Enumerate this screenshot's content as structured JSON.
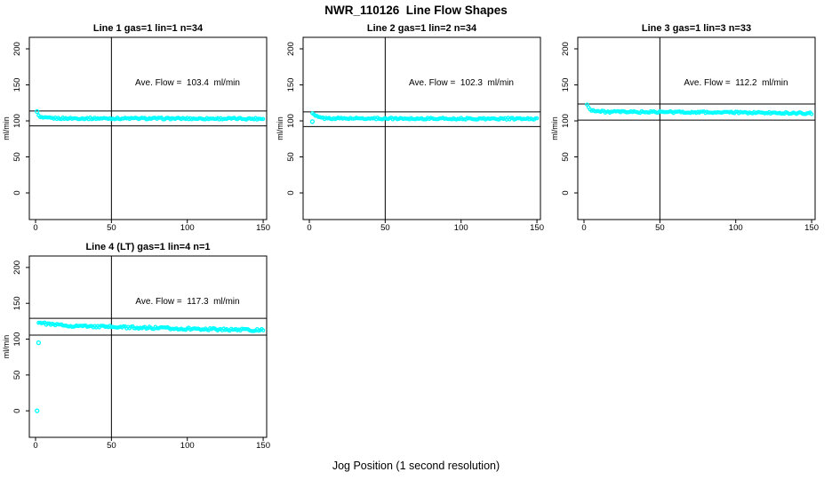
{
  "figure": {
    "title": "NWR_110126  Line Flow Shapes",
    "xlabel": "Jog Position (1 second resolution)",
    "background_color": "#FFFFFF",
    "axis_color": "#000000",
    "marker_color": "#00FFFF"
  },
  "chart_data": [
    {
      "type": "scatter",
      "title": "Line 1 gas=1 lin=1 n=34",
      "annotation": "Ave. Flow =  103.4  ml/min",
      "ave_flow_ml_min": 103.4,
      "ylabel": "ml/min",
      "xticks": [
        0,
        50,
        100,
        150
      ],
      "yticks": [
        0,
        50,
        100,
        150,
        200
      ],
      "xlim": [
        -4.1,
        152.3
      ],
      "ylim": [
        -37,
        216
      ],
      "vline_x": 50,
      "hlines": [
        113.7,
        93.1
      ],
      "annotation_pos": [
        100,
        150
      ],
      "x_start": 2,
      "x_end": 150,
      "profile": [
        [
          2,
          107
        ],
        [
          3,
          105
        ],
        [
          6,
          104
        ],
        [
          15,
          103.5
        ],
        [
          150,
          103
        ]
      ],
      "outliers": [
        [
          1,
          113
        ]
      ],
      "jitter": 1.2,
      "seed": 1
    },
    {
      "type": "scatter",
      "title": "Line 2 gas=1 lin=2 n=34",
      "annotation": "Ave. Flow =  102.3  ml/min",
      "ave_flow_ml_min": 102.3,
      "ylabel": "ml/min",
      "xticks": [
        0,
        50,
        100,
        150
      ],
      "yticks": [
        0,
        50,
        100,
        150,
        200
      ],
      "xlim": [
        -4.1,
        152.3
      ],
      "ylim": [
        -37,
        216
      ],
      "vline_x": 50,
      "hlines": [
        112.5,
        92.1
      ],
      "annotation_pos": [
        100,
        150
      ],
      "x_start": 2,
      "x_end": 150,
      "profile": [
        [
          2,
          110
        ],
        [
          4,
          107
        ],
        [
          6,
          105
        ],
        [
          10,
          103.5
        ],
        [
          150,
          102.8
        ]
      ],
      "outliers": [
        [
          2,
          99
        ]
      ],
      "jitter": 1.2,
      "seed": 2
    },
    {
      "type": "scatter",
      "title": "Line 3 gas=1 lin=3 n=33",
      "annotation": "Ave. Flow =  112.2  ml/min",
      "ave_flow_ml_min": 112.2,
      "ylabel": "ml/min",
      "xticks": [
        0,
        50,
        100,
        150
      ],
      "yticks": [
        0,
        50,
        100,
        150,
        200
      ],
      "xlim": [
        -4.1,
        152.3
      ],
      "ylim": [
        -37,
        216
      ],
      "vline_x": 50,
      "hlines": [
        123.4,
        101.0
      ],
      "annotation_pos": [
        100,
        150
      ],
      "x_start": 2,
      "x_end": 150,
      "profile": [
        [
          2,
          122
        ],
        [
          3,
          119
        ],
        [
          5,
          115
        ],
        [
          8,
          113.5
        ],
        [
          15,
          112.5
        ],
        [
          80,
          112
        ],
        [
          150,
          110.5
        ]
      ],
      "outliers": [],
      "jitter": 1.3,
      "seed": 3
    },
    {
      "type": "scatter",
      "title": "Line 4 (LT) gas=1 lin=4 n=1",
      "annotation": "Ave. Flow =  117.3  ml/min",
      "ave_flow_ml_min": 117.3,
      "ylabel": "ml/min",
      "xticks": [
        0,
        50,
        100,
        150
      ],
      "yticks": [
        0,
        50,
        100,
        150,
        200
      ],
      "xlim": [
        -4.1,
        152.3
      ],
      "ylim": [
        -37,
        216
      ],
      "vline_x": 50,
      "hlines": [
        129.0,
        105.6
      ],
      "annotation_pos": [
        100,
        150
      ],
      "x_start": 2,
      "x_end": 150,
      "profile": [
        [
          2,
          124
        ],
        [
          5,
          122
        ],
        [
          10,
          120.5
        ],
        [
          20,
          119
        ],
        [
          40,
          117.5
        ],
        [
          70,
          116
        ],
        [
          100,
          114.5
        ],
        [
          150,
          112.5
        ]
      ],
      "outliers": [
        [
          1,
          0
        ],
        [
          2,
          95
        ]
      ],
      "jitter": 1.6,
      "seed": 4
    }
  ]
}
